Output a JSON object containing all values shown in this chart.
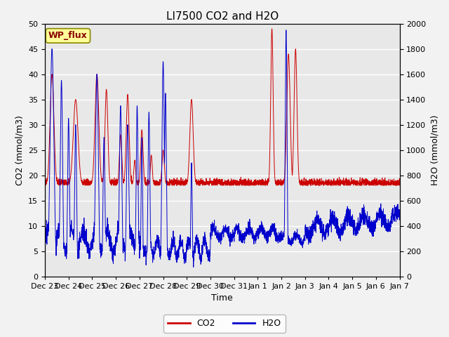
{
  "title": "LI7500 CO2 and H2O",
  "xlabel": "Time",
  "ylabel_left": "CO2 (mmol/m3)",
  "ylabel_right": "H2O (mmol/m3)",
  "ylim_left": [
    0,
    50
  ],
  "ylim_right": [
    0,
    2000
  ],
  "co2_color": "#cc0000",
  "h2o_color": "#0000cc",
  "plot_bg": "#e8e8e8",
  "fig_bg": "#f2f2f2",
  "legend_box_bg": "#ffff99",
  "legend_box_edge": "#888800",
  "legend_box_text": "#880000",
  "xtick_labels": [
    "Dec 23",
    "Dec 24",
    "Dec 25",
    "Dec 26",
    "Dec 27",
    "Dec 28",
    "Dec 29",
    "Dec 30",
    "Dec 31",
    "Jan 1",
    "Jan 2",
    "Jan 3",
    "Jan 4",
    "Jan 5",
    "Jan 6",
    "Jan 7"
  ],
  "n_points": 3000,
  "title_fontsize": 11,
  "axis_label_fontsize": 9,
  "tick_fontsize": 8
}
